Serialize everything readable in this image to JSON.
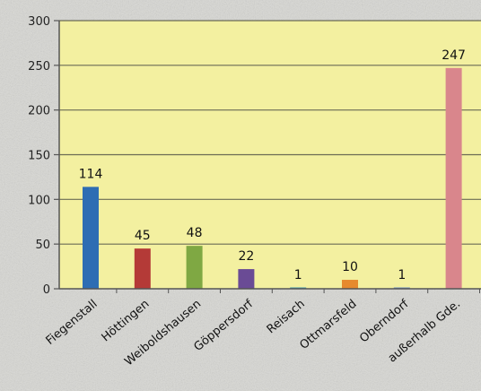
{
  "chart_data": {
    "type": "bar",
    "categories": [
      "Fiegenstall",
      "Höttingen",
      "Weiboldshausen",
      "Göppersdorf",
      "Reisach",
      "Ottmarsfeld",
      "Oberndorf",
      "außerhalb Gde."
    ],
    "values": [
      114,
      45,
      48,
      22,
      1,
      10,
      1,
      247
    ],
    "data_labels": [
      "114",
      "45",
      "48",
      "22",
      "1",
      "10",
      "1",
      "247"
    ],
    "y_ticks": [
      "0",
      "50",
      "100",
      "150",
      "200",
      "250",
      "300"
    ],
    "ylim": [
      0,
      300
    ],
    "grid": true,
    "colors": [
      "#2e6db3",
      "#b43a37",
      "#7fa843",
      "#6a4b95",
      "#3f98b0",
      "#e68a2e",
      "#6f8fc2",
      "#d9868c"
    ],
    "plot_background": "#f3f0a0"
  }
}
